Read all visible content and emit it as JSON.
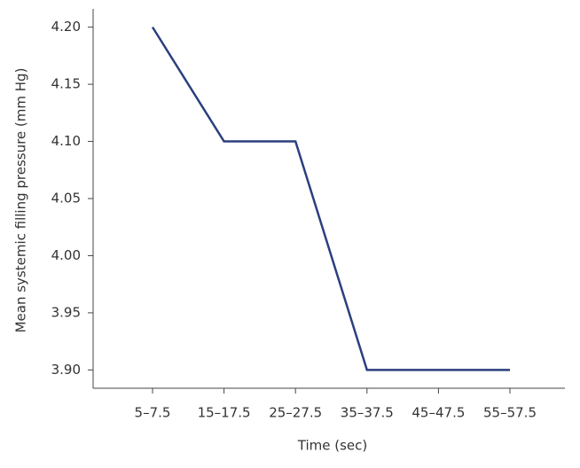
{
  "chart_data": {
    "type": "line",
    "x_label": "Time (sec)",
    "y_label": "Mean systemic filling pressure (mm Hg)",
    "categories": [
      "5–7.5",
      "15–17.5",
      "25–27.5",
      "35–37.5",
      "45–47.5",
      "55–57.5"
    ],
    "values": [
      4.2,
      4.1,
      4.1,
      3.9,
      3.9,
      3.9
    ],
    "color": "#2b3f7e",
    "ylim": [
      3.884,
      4.216
    ],
    "yticks": [
      {
        "value": 3.9,
        "label": "3.90"
      },
      3.95,
      {
        "value": 4,
        "label": "4.00"
      },
      4.05,
      {
        "value": 4.1,
        "label": "4.10"
      },
      4.15,
      {
        "value": 4.2,
        "label": "4.20"
      }
    ]
  }
}
